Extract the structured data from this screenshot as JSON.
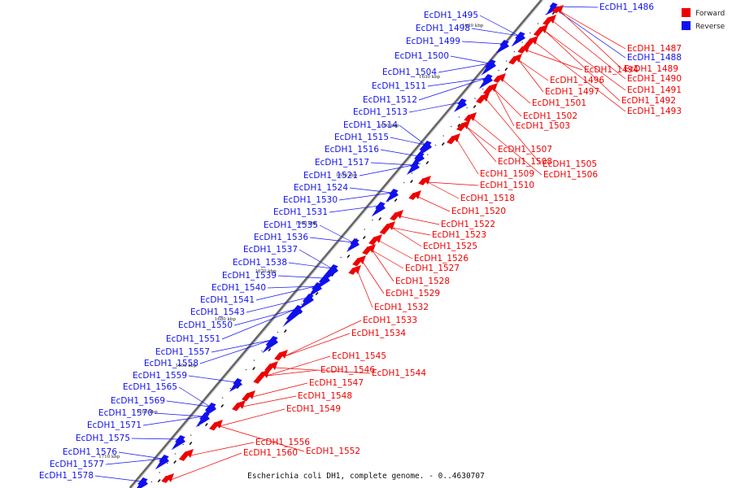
{
  "colors": {
    "forward": "#ee0000",
    "reverse": "#1010ee",
    "backbone": "#888888"
  },
  "legend": [
    {
      "label": "Forward",
      "color": "#ee0000"
    },
    {
      "label": "Reverse",
      "color": "#1010ee"
    }
  ],
  "caption": "Escherichia coli DH1, complete genome. - 0..4630707",
  "ticks": [
    "1620 kbp",
    "1630 kbp",
    "1640 kbp",
    "1650 kbp",
    "1660 kbp",
    "1670 kbp",
    "1680 kbp",
    "1690 kbp",
    "1700 kbp",
    "1710 kbp"
  ],
  "reverse_genes": [
    "EcDH1_1486",
    "EcDH1_1488",
    "EcDH1_1495",
    "EcDH1_1498",
    "EcDH1_1499",
    "EcDH1_1500",
    "EcDH1_1504",
    "EcDH1_1511",
    "EcDH1_1512",
    "EcDH1_1513",
    "EcDH1_1514",
    "EcDH1_1515",
    "EcDH1_1516",
    "EcDH1_1517",
    "EcDH1_1521",
    "EcDH1_1524",
    "EcDH1_1530",
    "EcDH1_1531",
    "EcDH1_1535",
    "EcDH1_1536",
    "EcDH1_1537",
    "EcDH1_1538",
    "EcDH1_1539",
    "EcDH1_1540",
    "EcDH1_1541",
    "EcDH1_1543",
    "EcDH1_1550",
    "EcDH1_1551",
    "EcDH1_1557",
    "EcDH1_1558",
    "EcDH1_1559",
    "EcDH1_1565",
    "EcDH1_1569",
    "EcDH1_1570",
    "EcDH1_1571",
    "EcDH1_1575",
    "EcDH1_1576",
    "EcDH1_1577",
    "EcDH1_1578"
  ],
  "forward_genes": [
    "EcDH1_1487",
    "EcDH1_1489",
    "EcDH1_1490",
    "EcDH1_1491",
    "EcDH1_1492",
    "EcDH1_1493",
    "EcDH1_1494",
    "EcDH1_1496",
    "EcDH1_1497",
    "EcDH1_1501",
    "EcDH1_1502",
    "EcDH1_1503",
    "EcDH1_1505",
    "EcDH1_1506",
    "EcDH1_1507",
    "EcDH1_1508",
    "EcDH1_1509",
    "EcDH1_1510",
    "EcDH1_1518",
    "EcDH1_1520",
    "EcDH1_1522",
    "EcDH1_1523",
    "EcDH1_1525",
    "EcDH1_1526",
    "EcDH1_1527",
    "EcDH1_1528",
    "EcDH1_1529",
    "EcDH1_1532",
    "EcDH1_1533",
    "EcDH1_1534",
    "EcDH1_1544",
    "EcDH1_1545",
    "EcDH1_1546",
    "EcDH1_1547",
    "EcDH1_1548",
    "EcDH1_1549",
    "EcDH1_1552",
    "EcDH1_1556",
    "EcDH1_1560"
  ]
}
